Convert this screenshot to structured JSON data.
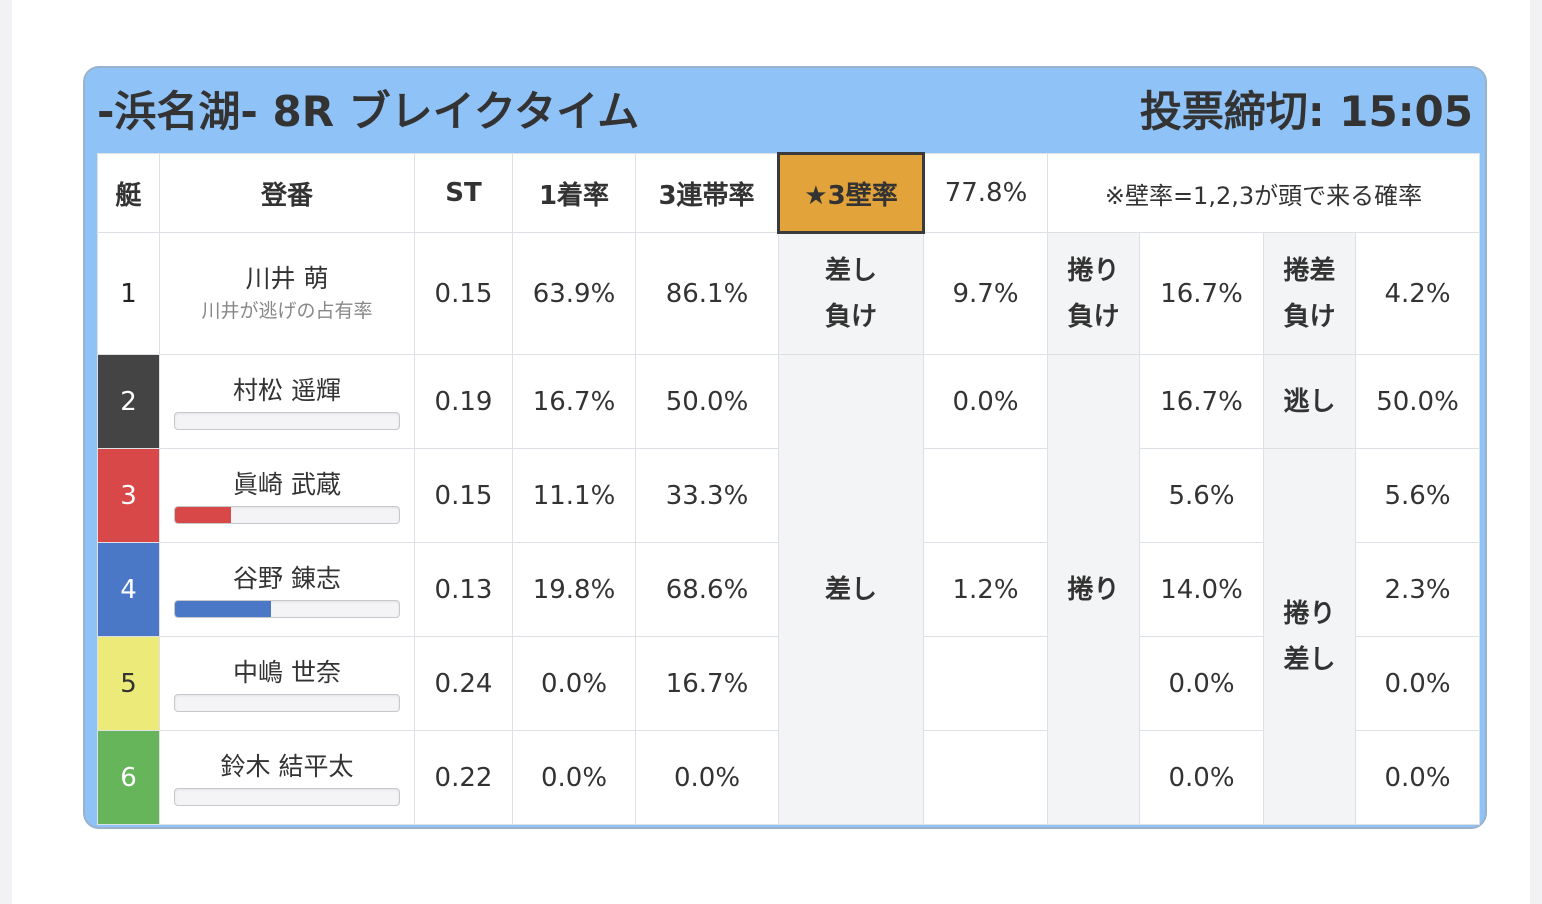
{
  "header": {
    "title": "-浜名湖- 8R ブレイクタイム",
    "deadline": "投票締切: 15:05"
  },
  "table_header": {
    "boat": "艇",
    "reg": "登番",
    "st": "ST",
    "first_rate": "1着率",
    "top3_rate": "3連帯率",
    "wall_label": "★3壁率",
    "wall_value": "77.8%",
    "wall_note": "※壁率=1,2,3が頭で来る確率"
  },
  "lane1_note": "川井が逃げの占有率",
  "side_labels": {
    "sashi_make": "差し\n負け",
    "makuri_make": "捲り\n負け",
    "makurisashi_make": "捲差\n負け",
    "nige": "逃し",
    "sashi": "差し",
    "makuri": "捲り",
    "makurisashi": "捲り\n差し"
  },
  "colors": {
    "lane1": "#ffffff",
    "lane2": "#444444",
    "lane3": "#d94848",
    "lane4": "#4a78c6",
    "lane5": "#ecea78",
    "lane6": "#66b55a",
    "wall_highlight": "#e2a33b",
    "card_bg": "#8fc2f6"
  },
  "rows": [
    {
      "lane": "1",
      "name": "川井 萌",
      "st": "0.15",
      "first": "63.9%",
      "top3": "86.1%",
      "sashi": "9.7%",
      "makuri": "16.7%",
      "makurisashi": "4.2%"
    },
    {
      "lane": "2",
      "name": "村松 遥輝",
      "st": "0.19",
      "first": "16.7%",
      "top3": "50.0%",
      "sashi": "0.0%",
      "makuri": "16.7%",
      "makurisashi": "50.0%",
      "bar": 0
    },
    {
      "lane": "3",
      "name": "眞崎 武蔵",
      "st": "0.15",
      "first": "11.1%",
      "top3": "33.3%",
      "sashi": "",
      "makuri": "5.6%",
      "makurisashi": "5.6%",
      "bar": 0.25
    },
    {
      "lane": "4",
      "name": "谷野 錬志",
      "st": "0.13",
      "first": "19.8%",
      "top3": "68.6%",
      "sashi": "1.2%",
      "makuri": "14.0%",
      "makurisashi": "2.3%",
      "bar": 0.43
    },
    {
      "lane": "5",
      "name": "中嶋 世奈",
      "st": "0.24",
      "first": "0.0%",
      "top3": "16.7%",
      "sashi": "",
      "makuri": "0.0%",
      "makurisashi": "0.0%",
      "bar": 0
    },
    {
      "lane": "6",
      "name": "鈴木 結平太",
      "st": "0.22",
      "first": "0.0%",
      "top3": "0.0%",
      "sashi": "",
      "makuri": "0.0%",
      "makurisashi": "0.0%",
      "bar": 0
    }
  ]
}
